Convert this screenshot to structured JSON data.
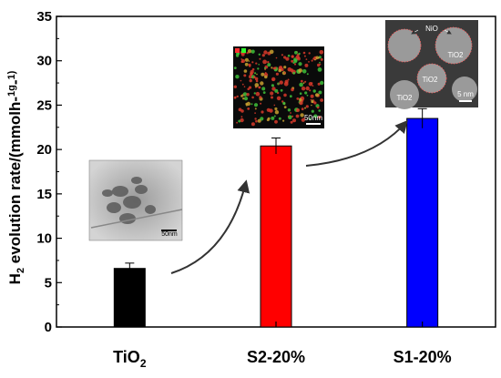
{
  "chart_data": {
    "type": "bar",
    "categories": [
      "TiO2",
      "S2-20%",
      "S1-20%"
    ],
    "values": [
      6.6,
      20.4,
      23.5
    ],
    "errors": [
      0.6,
      0.9,
      1.1
    ],
    "colors": [
      "#000000",
      "#ff0000",
      "#0000ff"
    ],
    "ylabel": "H2 evolution rate/(mmolh-1g-1)",
    "ylim": [
      0,
      35
    ],
    "yticks": [
      0,
      5,
      10,
      15,
      20,
      25,
      30,
      35
    ],
    "grid": false,
    "insets": [
      {
        "scale_label": "50nm"
      },
      {
        "scale_label": "50nm"
      },
      {
        "scale_label": "5 nm",
        "labels": [
          "NiO",
          "TiO2",
          "TiO2",
          "TiO2"
        ]
      }
    ]
  }
}
